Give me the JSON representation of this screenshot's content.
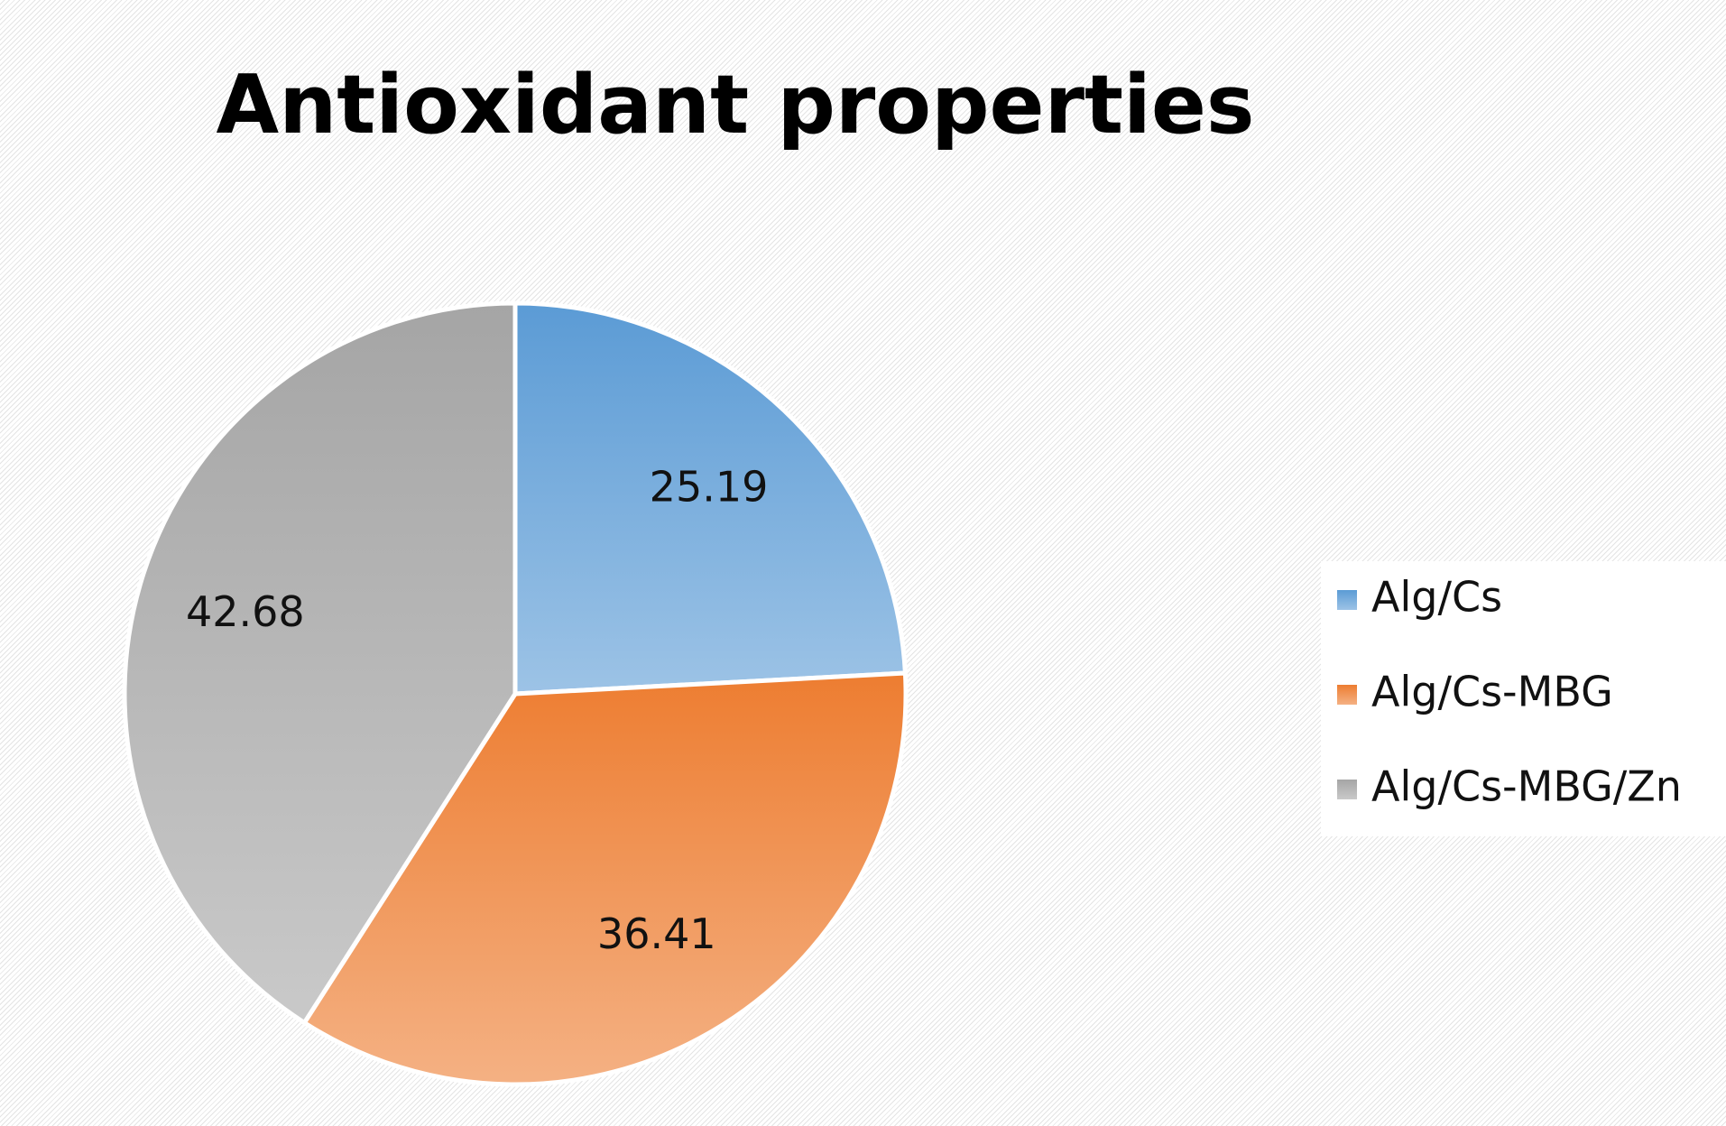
{
  "chart_data": {
    "type": "pie",
    "title": "Antioxidant properties",
    "categories": [
      "Alg/Cs",
      "Alg/Cs-MBG",
      "Alg/Cs-MBG/Zn"
    ],
    "values": [
      25.19,
      36.41,
      42.68
    ],
    "colors": [
      "#5b9bd5",
      "#ed7d31",
      "#a5a5a5"
    ],
    "legend": "right"
  }
}
